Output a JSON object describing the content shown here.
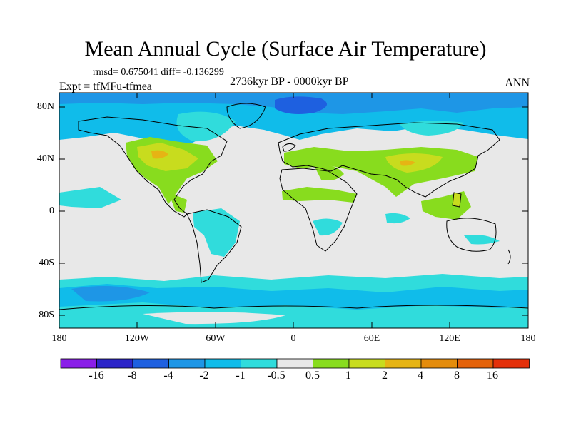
{
  "title": "Mean Annual Cycle (Surface Air Temperature)",
  "stats": "rmsd= 0.675041  diff= -0.136299",
  "experiment": "Expt = tfMFu-tfmea",
  "period": "2736kyr BP - 0000kyr BP",
  "season": "ANN",
  "y_axis": {
    "ticks": [
      "80N",
      "40N",
      "0",
      "40S",
      "80S"
    ]
  },
  "x_axis": {
    "ticks": [
      "180",
      "120W",
      "60W",
      "0",
      "60E",
      "120E",
      "180"
    ]
  },
  "colorbar": {
    "labels": [
      "-16",
      "-8",
      "-4",
      "-2",
      "-1",
      "-0.5",
      "0.5",
      "1",
      "2",
      "4",
      "8",
      "16"
    ],
    "colors": [
      "#8a1ee8",
      "#2c24c8",
      "#1e60e0",
      "#1e96e6",
      "#10bcea",
      "#30dcdc",
      "#e8e8e8",
      "#88dc1e",
      "#c8dc1e",
      "#e6b414",
      "#e48c0c",
      "#e4620a",
      "#e4300a"
    ]
  },
  "colors": {
    "neutral": "#e8e8e8",
    "cool_light": "#30dcdc",
    "cool_mid": "#10bcea",
    "cool_strong": "#1e96e6",
    "cool_deep": "#1e60e0",
    "warm_light": "#88dc1e",
    "warm_mid": "#c8dc1e",
    "warm_strong": "#e6b414"
  }
}
